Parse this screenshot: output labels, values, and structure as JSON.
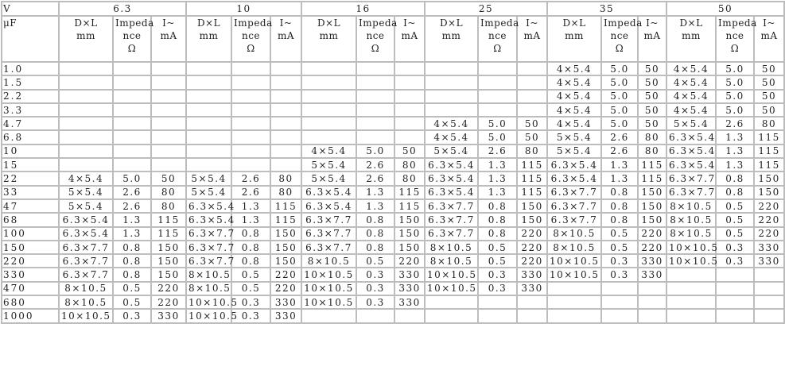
{
  "header": {
    "v_label": "V",
    "uf_label": "μF",
    "voltages": [
      "6.3",
      "10",
      "16",
      "25",
      "35",
      "50"
    ],
    "sub": {
      "dl": [
        "D×L",
        "mm"
      ],
      "impedance": [
        "Impeda",
        "nce",
        "Ω"
      ],
      "current": [
        "I~",
        "mA"
      ]
    }
  },
  "rows": [
    [
      "1.0",
      "",
      "",
      "",
      "",
      "",
      "",
      "",
      "",
      "",
      "",
      "",
      "",
      "4×5.4",
      "5.0",
      "50",
      "4×5.4",
      "5.0",
      "50"
    ],
    [
      "1.5",
      "",
      "",
      "",
      "",
      "",
      "",
      "",
      "",
      "",
      "",
      "",
      "",
      "4×5.4",
      "5.0",
      "50",
      "4×5.4",
      "5.0",
      "50"
    ],
    [
      "2.2",
      "",
      "",
      "",
      "",
      "",
      "",
      "",
      "",
      "",
      "",
      "",
      "",
      "4×5.4",
      "5.0",
      "50",
      "4×5.4",
      "5.0",
      "50"
    ],
    [
      "3.3",
      "",
      "",
      "",
      "",
      "",
      "",
      "",
      "",
      "",
      "",
      "",
      "",
      "4×5.4",
      "5.0",
      "50",
      "4×5.4",
      "5.0",
      "50"
    ],
    [
      "4.7",
      "",
      "",
      "",
      "",
      "",
      "",
      "",
      "",
      "",
      "4×5.4",
      "5.0",
      "50",
      "4×5.4",
      "5.0",
      "50",
      "5×5.4",
      "2.6",
      "80"
    ],
    [
      "6.8",
      "",
      "",
      "",
      "",
      "",
      "",
      "",
      "",
      "",
      "4×5.4",
      "5.0",
      "50",
      "5×5.4",
      "2.6",
      "80",
      "6.3×5.4",
      "1.3",
      "115"
    ],
    [
      "10",
      "",
      "",
      "",
      "",
      "",
      "",
      "4×5.4",
      "5.0",
      "50",
      "5×5.4",
      "2.6",
      "80",
      "5×5.4",
      "2.6",
      "80",
      "6.3×5.4",
      "1.3",
      "115"
    ],
    [
      "15",
      "",
      "",
      "",
      "",
      "",
      "",
      "5×5.4",
      "2.6",
      "80",
      "6.3×5.4",
      "1.3",
      "115",
      "6.3×5.4",
      "1.3",
      "115",
      "6.3×5.4",
      "1.3",
      "115"
    ],
    [
      "22",
      "4×5.4",
      "5.0",
      "50",
      "5×5.4",
      "2.6",
      "80",
      "5×5.4",
      "2.6",
      "80",
      "6.3×5.4",
      "1.3",
      "115",
      "6.3×5.4",
      "1.3",
      "115",
      "6.3×7.7",
      "0.8",
      "150"
    ],
    [
      "33",
      "5×5.4",
      "2.6",
      "80",
      "5×5.4",
      "2.6",
      "80",
      "6.3×5.4",
      "1.3",
      "115",
      "6.3×5.4",
      "1.3",
      "115",
      "6.3×7.7",
      "0.8",
      "150",
      "6.3×7.7",
      "0.8",
      "150"
    ],
    [
      "47",
      "5×5.4",
      "2.6",
      "80",
      "6.3×5.4",
      "1.3",
      "115",
      "6.3×5.4",
      "1.3",
      "115",
      "6.3×7.7",
      "0.8",
      "150",
      "6.3×7.7",
      "0.8",
      "150",
      "8×10.5",
      "0.5",
      "220"
    ],
    [
      "68",
      "6.3×5.4",
      "1.3",
      "115",
      "6.3×5.4",
      "1.3",
      "115",
      "6.3×7.7",
      "0.8",
      "150",
      "6.3×7.7",
      "0.8",
      "150",
      "6.3×7.7",
      "0.8",
      "150",
      "8×10.5",
      "0.5",
      "220"
    ],
    [
      "100",
      "6.3×5.4",
      "1.3",
      "115",
      "6.3×7.7",
      "0.8",
      "150",
      "6.3×7.7",
      "0.8",
      "150",
      "6.3×7.7",
      "0.8",
      "220",
      "8×10.5",
      "0.5",
      "220",
      "8×10.5",
      "0.5",
      "220"
    ],
    [
      "150",
      "6.3×7.7",
      "0.8",
      "150",
      "6.3×7.7",
      "0.8",
      "150",
      "6.3×7.7",
      "0.8",
      "150",
      "8×10.5",
      "0.5",
      "220",
      "8×10.5",
      "0.5",
      "220",
      "10×10.5",
      "0.3",
      "330"
    ],
    [
      "220",
      "6.3×7.7",
      "0.8",
      "150",
      "6.3×7.7",
      "0.8",
      "150",
      "8×10.5",
      "0.5",
      "220",
      "8×10.5",
      "0.5",
      "220",
      "10×10.5",
      "0.3",
      "330",
      "10×10.5",
      "0.3",
      "330"
    ],
    [
      "330",
      "6.3×7.7",
      "0.8",
      "150",
      "8×10.5",
      "0.5",
      "220",
      "10×10.5",
      "0.3",
      "330",
      "10×10.5",
      "0.3",
      "330",
      "10×10.5",
      "0.3",
      "330",
      "",
      "",
      ""
    ],
    [
      "470",
      "8×10.5",
      "0.5",
      "220",
      "8×10.5",
      "0.5",
      "220",
      "10×10.5",
      "0.3",
      "330",
      "10×10.5",
      "0.3",
      "330",
      "",
      "",
      "",
      "",
      "",
      ""
    ],
    [
      "680",
      "8×10.5",
      "0.5",
      "220",
      "10×10.5",
      "0.3",
      "330",
      "10×10.5",
      "0.3",
      "330",
      "",
      "",
      "",
      "",
      "",
      "",
      "",
      "",
      ""
    ],
    [
      "1000",
      "10×10.5",
      "0.3",
      "330",
      "10×10.5",
      "0.3",
      "330",
      "",
      "",
      "",
      "",
      "",
      "",
      "",
      "",
      "",
      "",
      "",
      ""
    ]
  ]
}
